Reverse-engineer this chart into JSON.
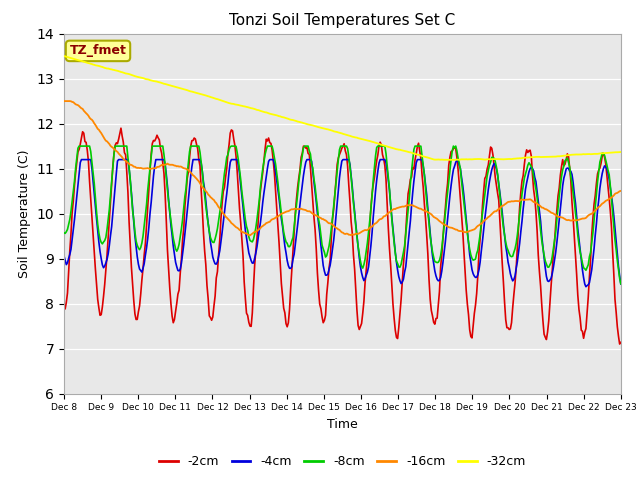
{
  "title": "Tonzi Soil Temperatures Set C",
  "xlabel": "Time",
  "ylabel": "Soil Temperature (C)",
  "ylim": [
    6.0,
    14.0
  ],
  "yticks": [
    6.0,
    7.0,
    8.0,
    9.0,
    10.0,
    11.0,
    12.0,
    13.0,
    14.0
  ],
  "xtick_labels": [
    "Dec 8",
    "Dec 9",
    "Dec 10",
    "Dec 11",
    "Dec 12",
    "Dec 13",
    "Dec 14",
    "Dec 15",
    "Dec 16",
    "Dec 17",
    "Dec 18",
    "Dec 19",
    "Dec 20",
    "Dec 21",
    "Dec 22",
    "Dec 23"
  ],
  "colors": {
    "-2cm": "#dd0000",
    "-4cm": "#0000dd",
    "-8cm": "#00cc00",
    "-16cm": "#ff8800",
    "-32cm": "#ffff00"
  },
  "annotation_text": "TZ_fmet",
  "annotation_bg": "#ffff99",
  "annotation_fg": "#8b0000",
  "bg_color": "#e8e8e8",
  "n_points": 480
}
